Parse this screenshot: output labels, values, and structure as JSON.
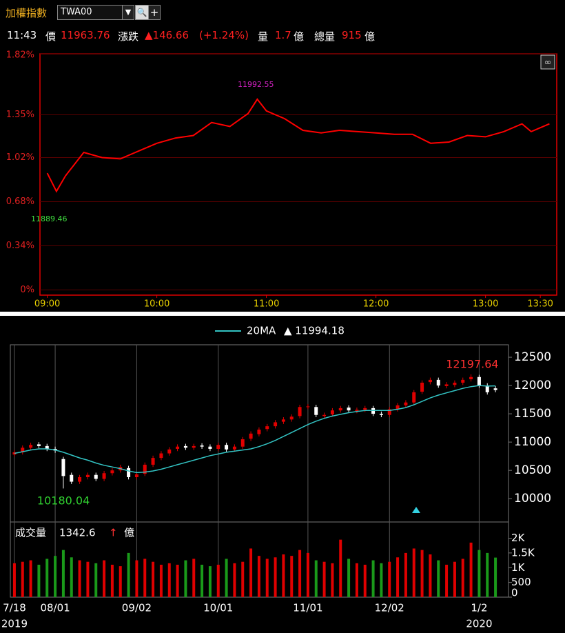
{
  "header": {
    "title": "加權指數",
    "symbol": "TWA00",
    "time": "11:43",
    "price_label": "價",
    "price": "11963.76",
    "change_label": "漲跌",
    "change": "▲146.66",
    "change_pct": "(+1.24%)",
    "vol_label": "量",
    "vol": "1.7",
    "vol_unit": "億",
    "total_label": "總量",
    "total": "915",
    "total_unit": "億"
  },
  "chart_data": [
    {
      "type": "line",
      "color": "#ff0000",
      "grid": true,
      "x": [
        0,
        5,
        10,
        20,
        30,
        40,
        50,
        60,
        70,
        80,
        90,
        100,
        110,
        115,
        120,
        130,
        140,
        150,
        160,
        170,
        180,
        190,
        200,
        210,
        220,
        230,
        240,
        250,
        260,
        265,
        275
      ],
      "values": [
        0.9,
        0.76,
        0.88,
        1.06,
        1.02,
        1.01,
        1.07,
        1.13,
        1.17,
        1.19,
        1.29,
        1.26,
        1.36,
        1.47,
        1.38,
        1.32,
        1.23,
        1.21,
        1.23,
        1.22,
        1.21,
        1.2,
        1.2,
        1.13,
        1.14,
        1.19,
        1.18,
        1.22,
        1.28,
        1.22,
        1.28
      ],
      "xlim": [
        -4,
        279
      ],
      "xticks": [
        {
          "value": 0,
          "label": "09:00"
        },
        {
          "value": 60,
          "label": "10:00"
        },
        {
          "value": 120,
          "label": "11:00"
        },
        {
          "value": 180,
          "label": "12:00"
        },
        {
          "value": 240,
          "label": "13:00"
        },
        {
          "value": 270,
          "label": "13:30"
        }
      ],
      "ylim": [
        -0.04,
        1.82
      ],
      "yticks": [
        {
          "value": 0,
          "label": "0%"
        },
        {
          "value": 0.34,
          "label": "0.34%"
        },
        {
          "value": 0.68,
          "label": "0.68%"
        },
        {
          "value": 1.02,
          "label": "1.02%"
        },
        {
          "value": 1.35,
          "label": "1.35%"
        },
        {
          "value": 1.82,
          "label": "1.82%"
        }
      ],
      "annotations": [
        "11992.55",
        "11889.46"
      ]
    },
    {
      "type": "candlestick",
      "up_color": "#e00000",
      "down_color": "#ffffff",
      "categories": [
        "7/18",
        null,
        null,
        null,
        null,
        "08/01",
        null,
        null,
        null,
        null,
        null,
        null,
        null,
        null,
        null,
        "09/02",
        null,
        null,
        null,
        null,
        null,
        null,
        null,
        null,
        null,
        "10/01",
        null,
        null,
        null,
        null,
        null,
        null,
        null,
        null,
        null,
        null,
        "11/01",
        null,
        null,
        null,
        null,
        null,
        null,
        null,
        null,
        null,
        "12/02",
        null,
        null,
        null,
        null,
        null,
        null,
        null,
        null,
        null,
        null,
        "1/2",
        null,
        null
      ],
      "year_labels": [
        "2019",
        null,
        null,
        null,
        null,
        null,
        null,
        null,
        null,
        null,
        null,
        null,
        null,
        null,
        null,
        null,
        null,
        null,
        null,
        null,
        null,
        null,
        null,
        null,
        null,
        null,
        null,
        null,
        null,
        null,
        null,
        null,
        null,
        null,
        null,
        null,
        null,
        null,
        null,
        null,
        null,
        null,
        null,
        null,
        null,
        null,
        null,
        null,
        null,
        null,
        null,
        null,
        null,
        null,
        null,
        null,
        null,
        "2020",
        null,
        null
      ],
      "open": [
        10780,
        10820,
        10900,
        10960,
        10930,
        10880,
        10700,
        10420,
        10300,
        10380,
        10420,
        10350,
        10450,
        10500,
        10540,
        10380,
        10440,
        10600,
        10720,
        10800,
        10880,
        10930,
        10900,
        10940,
        10920,
        10880,
        10950,
        10870,
        10920,
        11060,
        11140,
        11230,
        11280,
        11360,
        11400,
        11460,
        11620,
        11620,
        11460,
        11490,
        11560,
        11610,
        11550,
        11570,
        11600,
        11500,
        11480,
        11580,
        11650,
        11700,
        11890,
        12060,
        12100,
        11990,
        12010,
        12050,
        12110,
        12150,
        12000,
        11950
      ],
      "high": [
        10860,
        10940,
        10990,
        11000,
        10970,
        10920,
        10740,
        10460,
        10420,
        10460,
        10460,
        10490,
        10540,
        10600,
        10580,
        10470,
        10640,
        10760,
        10840,
        10910,
        10960,
        10970,
        10970,
        10980,
        10960,
        10990,
        10990,
        10960,
        11090,
        11190,
        11260,
        11320,
        11390,
        11440,
        11490,
        11660,
        11670,
        11660,
        11520,
        11600,
        11640,
        11650,
        11610,
        11640,
        11640,
        11540,
        11620,
        11690,
        11740,
        11920,
        12090,
        12140,
        12140,
        12060,
        12090,
        12140,
        12197.64,
        12190,
        12040,
        11990
      ],
      "low": [
        10740,
        10780,
        10860,
        10890,
        10840,
        10810,
        10180.04,
        10260,
        10260,
        10340,
        10310,
        10310,
        10410,
        10460,
        10340,
        10340,
        10400,
        10560,
        10680,
        10760,
        10840,
        10860,
        10860,
        10880,
        10840,
        10840,
        10830,
        10830,
        10880,
        11020,
        11100,
        11190,
        11240,
        11320,
        11360,
        11420,
        11580,
        11440,
        11420,
        11450,
        11520,
        11520,
        11510,
        11530,
        11460,
        11440,
        11440,
        11540,
        11610,
        11660,
        11850,
        12020,
        11960,
        11950,
        11970,
        12010,
        12070,
        11960,
        11840,
        11880
      ],
      "close": [
        10820,
        10900,
        10950,
        10930,
        10880,
        10850,
        10400,
        10300,
        10380,
        10420,
        10350,
        10450,
        10500,
        10560,
        10380,
        10430,
        10600,
        10720,
        10800,
        10870,
        10920,
        10900,
        10930,
        10920,
        10880,
        10950,
        10870,
        10920,
        11050,
        11150,
        11220,
        11280,
        11350,
        11400,
        11450,
        11620,
        11630,
        11480,
        11480,
        11560,
        11600,
        11560,
        11570,
        11600,
        11500,
        11480,
        11580,
        11650,
        11700,
        11880,
        12050,
        12100,
        12000,
        12020,
        12050,
        12100,
        12150,
        12000,
        11880,
        11920
      ],
      "series": [
        {
          "name": "20MA",
          "color": "#33c4c4",
          "values": [
            10800,
            10830,
            10860,
            10880,
            10880,
            10860,
            10820,
            10770,
            10720,
            10680,
            10630,
            10590,
            10560,
            10530,
            10490,
            10460,
            10470,
            10490,
            10520,
            10560,
            10600,
            10640,
            10680,
            10720,
            10760,
            10790,
            10820,
            10840,
            10860,
            10880,
            10920,
            10970,
            11030,
            11100,
            11170,
            11240,
            11310,
            11370,
            11420,
            11460,
            11490,
            11520,
            11540,
            11560,
            11560,
            11560,
            11560,
            11580,
            11610,
            11660,
            11720,
            11780,
            11830,
            11870,
            11910,
            11950,
            11980,
            12000,
            11990,
            11994.18
          ]
        }
      ],
      "ma_label": "▲ 11994.18",
      "ylim": [
        9600,
        12720
      ],
      "yticks": [
        10000,
        10500,
        11000,
        11500,
        12000,
        12500
      ]
    },
    {
      "type": "bar",
      "title": "成交量",
      "change_symbol": "↑",
      "unit": "億",
      "up_color": "#e00000",
      "down_color": "#1a9a1a",
      "values": [
        1150,
        1200,
        1250,
        1100,
        1300,
        1400,
        1600,
        1350,
        1250,
        1200,
        1150,
        1250,
        1100,
        1050,
        1500,
        1250,
        1300,
        1200,
        1100,
        1150,
        1100,
        1250,
        1300,
        1100,
        1050,
        1100,
        1300,
        1150,
        1200,
        1650,
        1400,
        1300,
        1350,
        1450,
        1400,
        1600,
        1500,
        1250,
        1200,
        1150,
        1950,
        1300,
        1150,
        1100,
        1250,
        1150,
        1200,
        1350,
        1500,
        1650,
        1600,
        1450,
        1250,
        1100,
        1200,
        1300,
        1850,
        1600,
        1500,
        1342.6
      ],
      "ylim": [
        0,
        2550
      ],
      "yticks": [
        0,
        500,
        {
          "value": 1000,
          "label": "1K"
        },
        {
          "value": 1500,
          "label": "1.5K"
        },
        {
          "value": 2000,
          "label": "2K"
        }
      ]
    }
  ]
}
